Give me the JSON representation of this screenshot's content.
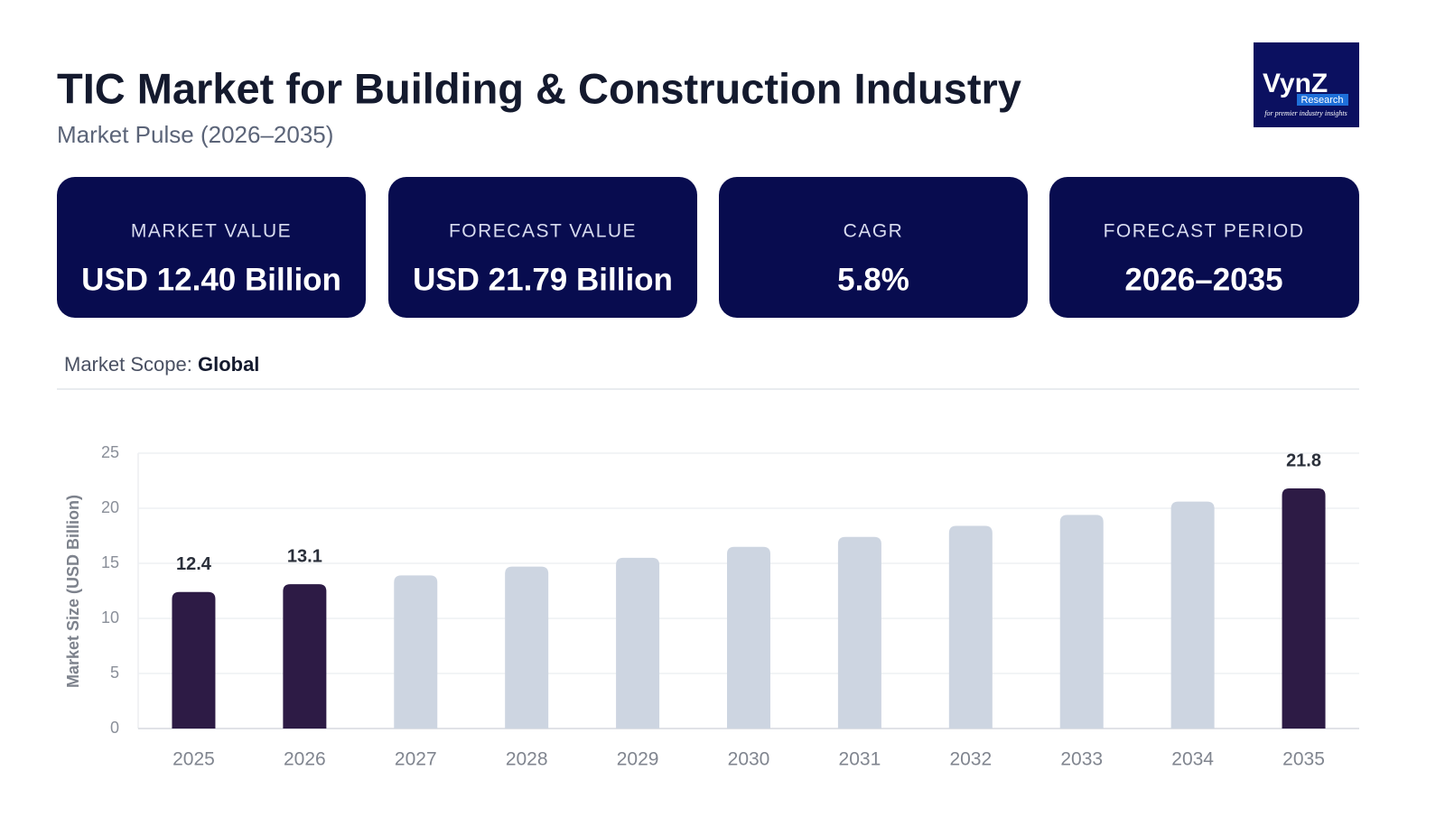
{
  "header": {
    "title": "TIC Market for Building & Construction Industry",
    "subtitle": "Market Pulse (2026–2035)"
  },
  "logo": {
    "name": "VynZ",
    "badge": "Research",
    "tagline": "for premier industry insights"
  },
  "cards": [
    {
      "label": "MARKET VALUE",
      "value": "USD 12.40 Billion"
    },
    {
      "label": "FORECAST VALUE",
      "value": "USD 21.79 Billion"
    },
    {
      "label": "CAGR",
      "value": "5.8%"
    },
    {
      "label": "FORECAST PERIOD",
      "value": "2026–2035"
    }
  ],
  "scope": {
    "label": "Market Scope:",
    "value": "Global"
  },
  "chart_data": {
    "type": "bar",
    "y_label": "Market Size (USD Billion)",
    "categories": [
      "2025",
      "2026",
      "2027",
      "2028",
      "2029",
      "2030",
      "2031",
      "2032",
      "2033",
      "2034",
      "2035"
    ],
    "values": [
      12.4,
      13.1,
      13.9,
      14.7,
      15.5,
      16.5,
      17.4,
      18.4,
      19.4,
      20.6,
      21.8
    ],
    "colors": [
      "#2d1b45",
      "#2d1b45",
      "#cdd5e1",
      "#cdd5e1",
      "#cdd5e1",
      "#cdd5e1",
      "#cdd5e1",
      "#cdd5e1",
      "#cdd5e1",
      "#cdd5e1",
      "#2d1b45"
    ],
    "labeled": [
      true,
      true,
      false,
      false,
      false,
      false,
      false,
      false,
      false,
      false,
      true
    ],
    "ylim": [
      0,
      25
    ],
    "yticks": [
      0,
      5,
      10,
      15,
      20,
      25
    ],
    "grid": true
  }
}
